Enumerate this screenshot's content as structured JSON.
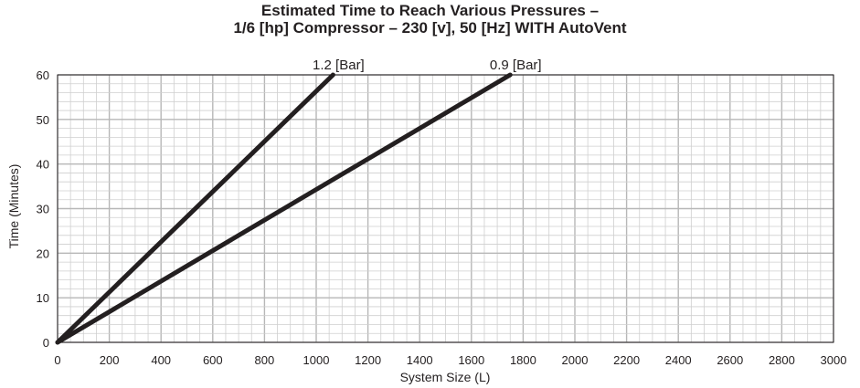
{
  "chart_data": {
    "type": "line",
    "title_line1": "Estimated Time to Reach Various Pressures –",
    "title_line2": "1/6 [hp] Compressor – 230 [v], 50 [Hz] WITH AutoVent",
    "xlabel": "System Size (L)",
    "ylabel": "Time (Minutes)",
    "xlim": [
      0,
      3000
    ],
    "ylim": [
      0,
      60
    ],
    "x_ticks": [
      0,
      200,
      400,
      600,
      800,
      1000,
      1200,
      1400,
      1600,
      1800,
      2000,
      2200,
      2400,
      2600,
      2800,
      3000
    ],
    "y_ticks": [
      0,
      10,
      20,
      30,
      40,
      50,
      60
    ],
    "grid": true,
    "series": [
      {
        "name": "1.2 [Bar]",
        "x": [
          0,
          1065
        ],
        "y": [
          0,
          60
        ]
      },
      {
        "name": "0.9 [Bar]",
        "x": [
          0,
          1750
        ],
        "y": [
          0,
          60
        ]
      }
    ],
    "colors": {
      "line": "#231f20",
      "grid_major": "#b7b7b7",
      "grid_minor": "#cfcfcf"
    }
  }
}
